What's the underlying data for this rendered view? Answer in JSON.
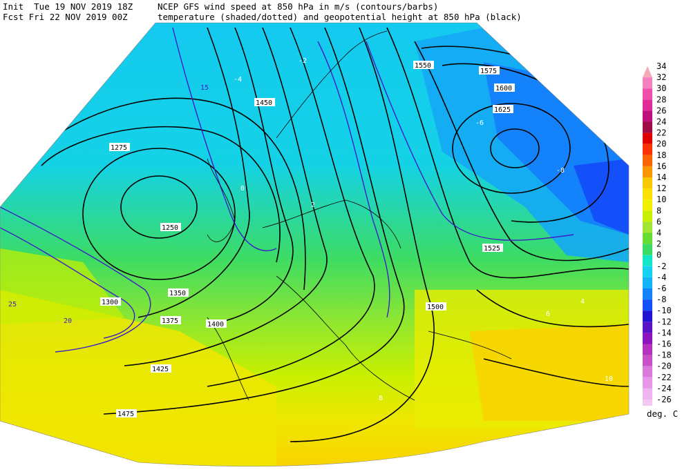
{
  "header": {
    "init_line": "Init  Tue 19 NOV 2019 18Z",
    "fcst_line": "Fcst Fri 22 NOV 2019 00Z",
    "title_line1": "NCEP GFS wind speed at 850 hPa in m/s (contours/barbs)",
    "title_line2": "temperature (shaded/dotted) and geopotential height at 850 hPa (black)"
  },
  "legend": {
    "unit": "deg. C",
    "entries": [
      {
        "value": "34",
        "color": "#f4aab8"
      },
      {
        "value": "32",
        "color": "#f482c0"
      },
      {
        "value": "30",
        "color": "#f050ac"
      },
      {
        "value": "28",
        "color": "#e02c98"
      },
      {
        "value": "26",
        "color": "#c0107e"
      },
      {
        "value": "24",
        "color": "#a00c48"
      },
      {
        "value": "22",
        "color": "#e00000"
      },
      {
        "value": "20",
        "color": "#fa3200"
      },
      {
        "value": "18",
        "color": "#fa6400"
      },
      {
        "value": "16",
        "color": "#fa9600"
      },
      {
        "value": "14",
        "color": "#fac800"
      },
      {
        "value": "12",
        "color": "#fae100"
      },
      {
        "value": "10",
        "color": "#f0f000"
      },
      {
        "value": "8",
        "color": "#c8f000"
      },
      {
        "value": "6",
        "color": "#a0e632"
      },
      {
        "value": "4",
        "color": "#64dc32"
      },
      {
        "value": "2",
        "color": "#3cdc64"
      },
      {
        "value": "0",
        "color": "#14e6c8"
      },
      {
        "value": "-2",
        "color": "#14d2f0"
      },
      {
        "value": "-4",
        "color": "#14b4fa"
      },
      {
        "value": "-6",
        "color": "#1482fa"
      },
      {
        "value": "-8",
        "color": "#1450fa"
      },
      {
        "value": "-10",
        "color": "#2014d2"
      },
      {
        "value": "-12",
        "color": "#5a14c8"
      },
      {
        "value": "-14",
        "color": "#8c14be"
      },
      {
        "value": "-16",
        "color": "#b432be"
      },
      {
        "value": "-18",
        "color": "#c850c8"
      },
      {
        "value": "-20",
        "color": "#dc78dc"
      },
      {
        "value": "-22",
        "color": "#e896e8"
      },
      {
        "value": "-24",
        "color": "#f0b4f0"
      },
      {
        "value": "-26",
        "color": "#f4c8f4"
      }
    ]
  },
  "map": {
    "height_labels": [
      "1250",
      "1275",
      "1300",
      "1350",
      "1375",
      "1400",
      "1425",
      "1450",
      "1475",
      "1500",
      "1525",
      "1550",
      "1575",
      "1600",
      "1625"
    ],
    "wind_labels": [
      "15",
      "20",
      "25"
    ],
    "temp_labels": [
      "-8",
      "-6",
      "-4",
      "-2",
      "0",
      "2",
      "4",
      "6",
      "8",
      "10"
    ]
  }
}
